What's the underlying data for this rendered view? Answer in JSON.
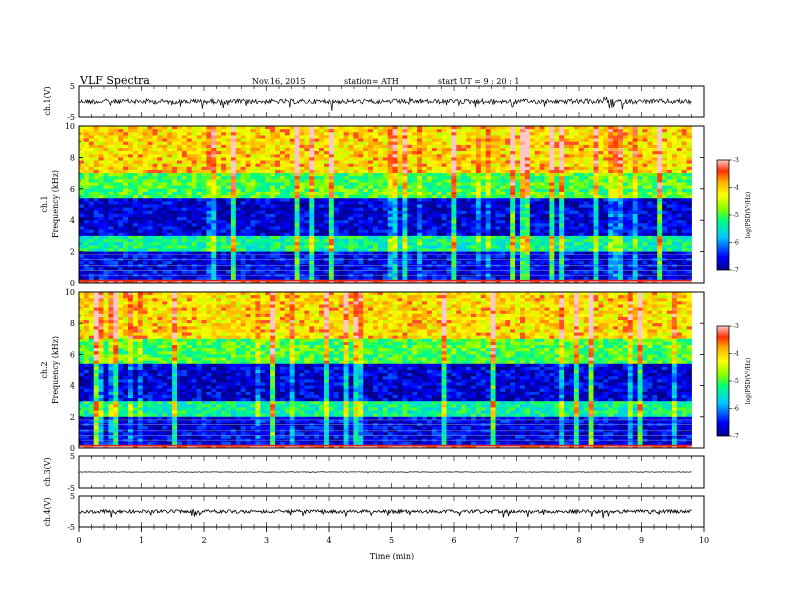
{
  "header": {
    "title": "VLF  Spectra",
    "date": "Nov.16, 2015",
    "station": "station= ATH",
    "start": "start  UT  =   9  : 20 : 1"
  },
  "chart_data": {
    "type": "heatmap",
    "xlabel": "Time  (min)",
    "xlim": [
      0,
      10
    ],
    "x_ticks": [
      "0",
      "1",
      "2",
      "3",
      "4",
      "5",
      "6",
      "7",
      "8",
      "9",
      "10"
    ],
    "data_end_min": 9.8,
    "panels": [
      {
        "id": "ch1-waveform",
        "type": "line",
        "ylabel": "ch.1(V)",
        "y_ticks": [
          "5",
          "-5"
        ],
        "ylim": [
          -5,
          5
        ],
        "trace_level": 0
      },
      {
        "id": "ch1-spectrogram",
        "type": "heatmap",
        "ylabel_top": "ch.1",
        "ylabel": "Frequency  (kHz)",
        "y_ticks": [
          "0",
          "2",
          "4",
          "6",
          "8",
          "10"
        ],
        "ylim": [
          0,
          10
        ]
      },
      {
        "id": "ch2-spectrogram",
        "type": "heatmap",
        "ylabel_top": "ch.2",
        "ylabel": "Frequency  (kHz)",
        "y_ticks": [
          "0",
          "2",
          "4",
          "6",
          "8",
          "10"
        ],
        "ylim": [
          0,
          10
        ]
      },
      {
        "id": "ch3-waveform",
        "type": "line",
        "ylabel": "ch.3(V)",
        "y_ticks": [
          "5",
          "-5"
        ],
        "ylim": [
          -5,
          5
        ],
        "trace_level": 0
      },
      {
        "id": "ch4-waveform",
        "type": "line",
        "ylabel": "ch.4(V)",
        "y_ticks": [
          "5",
          "-5"
        ],
        "ylim": [
          -5,
          5
        ],
        "trace_level": 0
      }
    ],
    "colorbar": {
      "label": "log(PSD(V²/Hz)",
      "ticks": [
        "-3",
        "-4",
        "-5",
        "-6",
        "-7"
      ],
      "range": [
        -7,
        -3
      ],
      "colors": [
        "#000088",
        "#0000ff",
        "#00c8ff",
        "#00ff80",
        "#80ff00",
        "#ffff00",
        "#ffb000",
        "#ff3000",
        "#ffc8c8"
      ]
    },
    "spectrogram_bands": [
      {
        "from_khz": 0,
        "to_khz": 0.3,
        "level": "red-white lines"
      },
      {
        "from_khz": 0.3,
        "to_khz": 2,
        "level": "dark blue with horizontal lines"
      },
      {
        "from_khz": 2,
        "to_khz": 3,
        "level": "cyan-green"
      },
      {
        "from_khz": 3,
        "to_khz": 5.5,
        "level": "dark blue"
      },
      {
        "from_khz": 5.5,
        "to_khz": 7,
        "level": "green"
      },
      {
        "from_khz": 7,
        "to_khz": 10,
        "level": "yellow-orange with red streaks"
      }
    ]
  }
}
